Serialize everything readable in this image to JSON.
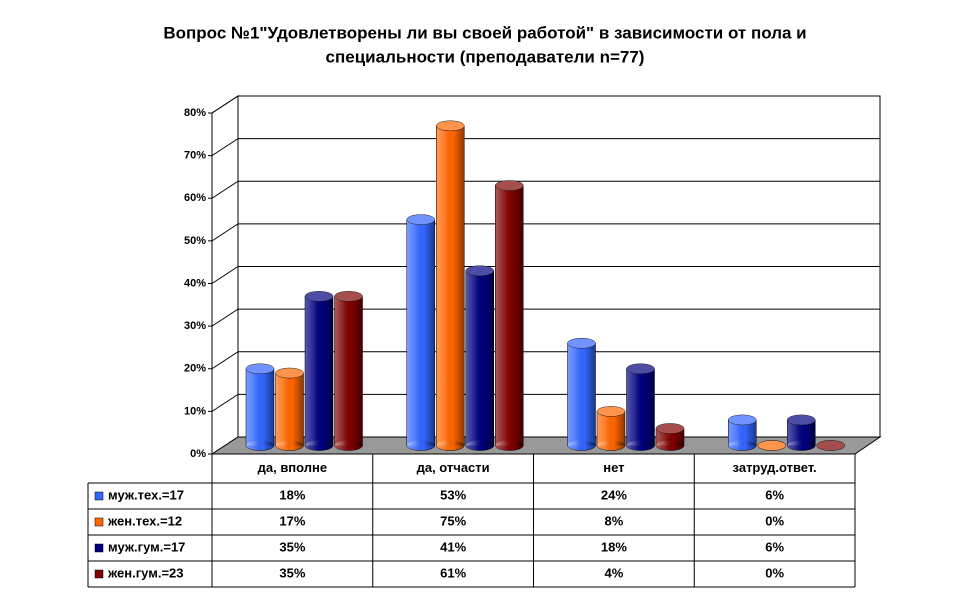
{
  "chart_data": {
    "type": "bar3d",
    "title": [
      "Вопрос №1\"Удовлетворены ли вы своей работой\" в зависимости от пола и",
      "специальности (преподаватели n=77)"
    ],
    "categories": [
      "да, вполне",
      "да, отчасти",
      "нет",
      "затруд.ответ."
    ],
    "series": [
      {
        "name": "муж.тех.=17",
        "color": "#3366ff",
        "values": [
          18,
          53,
          24,
          6
        ],
        "value_labels": [
          "18%",
          "53%",
          "24%",
          "6%"
        ]
      },
      {
        "name": "жен.тех.=12",
        "color": "#ff6600",
        "values": [
          17,
          75,
          8,
          0
        ],
        "value_labels": [
          "17%",
          "75%",
          "8%",
          "0%"
        ]
      },
      {
        "name": "муж.гум.=17",
        "color": "#000080",
        "values": [
          35,
          41,
          18,
          6
        ],
        "value_labels": [
          "35%",
          "41%",
          "18%",
          "6%"
        ]
      },
      {
        "name": "жен.гум.=23",
        "color": "#800000",
        "values": [
          35,
          61,
          4,
          0
        ],
        "value_labels": [
          "35%",
          "61%",
          "4%",
          "0%"
        ]
      }
    ],
    "ylim": [
      0,
      80
    ],
    "yticks": [
      {
        "value": 0,
        "label": "0%"
      },
      {
        "value": 10,
        "label": "10%"
      },
      {
        "value": 20,
        "label": "20%"
      },
      {
        "value": 30,
        "label": "30%"
      },
      {
        "value": 40,
        "label": "40%"
      },
      {
        "value": 50,
        "label": "50%"
      },
      {
        "value": 60,
        "label": "60%"
      },
      {
        "value": 70,
        "label": "70%"
      },
      {
        "value": 80,
        "label": "80%"
      }
    ],
    "grid": true
  }
}
